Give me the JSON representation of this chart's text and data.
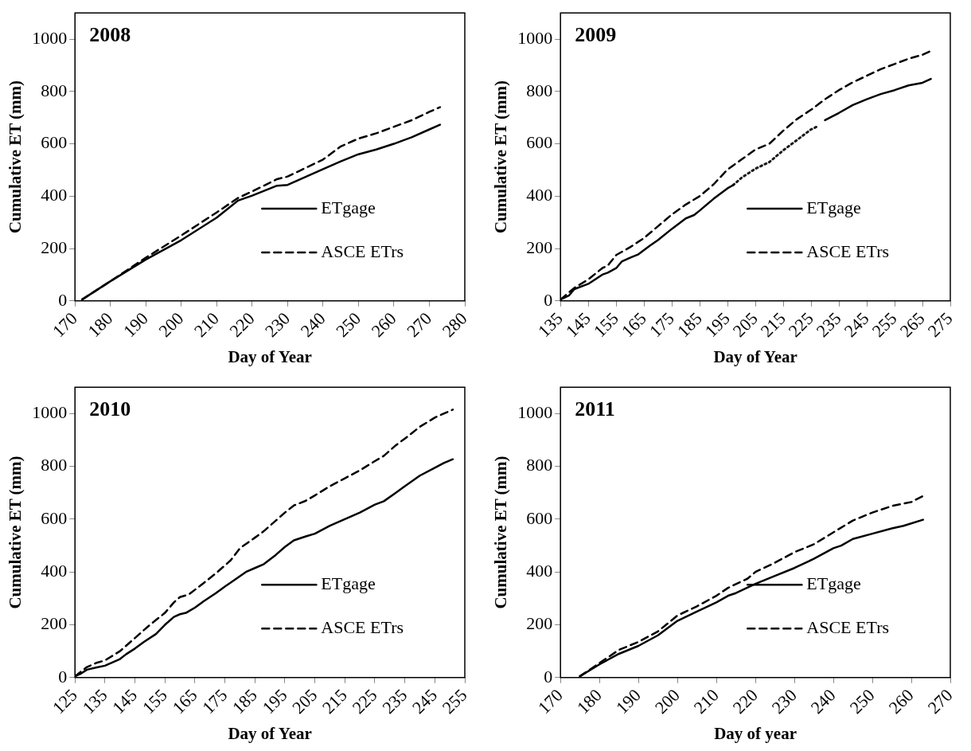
{
  "chart_data": [
    {
      "type": "line",
      "title": "2008",
      "xlabel": "Day of Year",
      "ylabel": "Cumulative ET (mm)",
      "xlim": [
        170,
        280
      ],
      "xticks": [
        170,
        180,
        190,
        200,
        210,
        220,
        230,
        240,
        250,
        260,
        270,
        280
      ],
      "ylim": [
        0,
        1100
      ],
      "yticks": [
        0,
        200,
        400,
        600,
        800,
        1000
      ],
      "grid": false,
      "legend": "right",
      "marker": "none",
      "series": [
        {
          "name": "ETgage",
          "color": "#000000",
          "line_style": "solid",
          "x": [
            172,
            180,
            190,
            200,
            210,
            216,
            220,
            227,
            230,
            240,
            245,
            250,
            255,
            260,
            265,
            270,
            273
          ],
          "values": [
            5,
            75,
            158,
            232,
            318,
            383,
            402,
            440,
            443,
            503,
            533,
            560,
            578,
            600,
            625,
            655,
            673
          ]
        },
        {
          "name": "ASCE ETrs",
          "color": "#000000",
          "line_style": "dashed",
          "x": [
            172,
            180,
            190,
            200,
            210,
            216,
            220,
            227,
            230,
            240,
            245,
            250,
            255,
            260,
            265,
            270,
            273
          ],
          "values": [
            5,
            75,
            165,
            250,
            338,
            393,
            418,
            465,
            475,
            540,
            590,
            620,
            640,
            665,
            690,
            722,
            740
          ]
        }
      ]
    },
    {
      "type": "line",
      "title": "2009",
      "xlabel": "Day of Year",
      "ylabel": "Cumulative ET (mm)",
      "xlim": [
        135,
        275
      ],
      "xticks": [
        135,
        145,
        155,
        165,
        175,
        185,
        195,
        205,
        215,
        225,
        235,
        245,
        255,
        265,
        275
      ],
      "ylim": [
        0,
        1100
      ],
      "yticks": [
        0,
        200,
        400,
        600,
        800,
        1000
      ],
      "grid": false,
      "legend": "right",
      "marker": "none",
      "series": [
        {
          "name": "ETgage",
          "color": "#000000",
          "line_style": "solid",
          "x": [
            135,
            138,
            140,
            145,
            150,
            152,
            155,
            157,
            160,
            163,
            167,
            170,
            175,
            180,
            183,
            185,
            190,
            195,
            197,
            227,
            230,
            235,
            240,
            245,
            250,
            255,
            260,
            265,
            268
          ],
          "values": [
            5,
            20,
            45,
            65,
            100,
            108,
            125,
            150,
            165,
            178,
            210,
            232,
            275,
            315,
            328,
            345,
            390,
            430,
            442,
            null,
            690,
            718,
            748,
            770,
            790,
            805,
            823,
            833,
            848
          ]
        },
        {
          "name": "ASCE ETrs",
          "color": "#000000",
          "line_style": "dashed",
          "x": [
            135,
            140,
            145,
            150,
            152,
            155,
            160,
            165,
            170,
            175,
            180,
            185,
            190,
            195,
            200,
            205,
            210,
            215,
            220,
            225,
            230,
            235,
            240,
            245,
            250,
            255,
            260,
            265,
            268
          ],
          "values": [
            5,
            50,
            82,
            125,
            135,
            175,
            205,
            240,
            285,
            330,
            368,
            400,
            445,
            502,
            540,
            578,
            600,
            650,
            695,
            730,
            770,
            805,
            835,
            860,
            885,
            905,
            925,
            940,
            955
          ]
        },
        {
          "color": "#1a1a1a",
          "line_style": "dotted",
          "x": [
            197,
            200,
            205,
            210,
            215,
            220,
            225,
            227
          ],
          "values": [
            442,
            470,
            505,
            530,
            575,
            615,
            655,
            665
          ]
        }
      ]
    },
    {
      "type": "line",
      "title": "2010",
      "xlabel": "Day of Year",
      "ylabel": "Cumulative ET (mm)",
      "xlim": [
        125,
        255
      ],
      "xticks": [
        125,
        135,
        145,
        155,
        165,
        175,
        185,
        195,
        205,
        215,
        225,
        235,
        245,
        255
      ],
      "ylim": [
        0,
        1100
      ],
      "yticks": [
        0,
        200,
        400,
        600,
        800,
        1000
      ],
      "grid": false,
      "legend": "right",
      "marker": "none",
      "series": [
        {
          "name": "ETgage",
          "color": "#000000",
          "line_style": "solid",
          "x": [
            125,
            127,
            129,
            132,
            135,
            140,
            142,
            145,
            148,
            152,
            155,
            158,
            160,
            162,
            165,
            168,
            172,
            175,
            178,
            182,
            185,
            188,
            192,
            195,
            198,
            202,
            205,
            210,
            215,
            220,
            225,
            228,
            232,
            235,
            240,
            245,
            248,
            251
          ],
          "values": [
            5,
            15,
            30,
            38,
            45,
            70,
            88,
            110,
            135,
            165,
            200,
            230,
            240,
            245,
            265,
            290,
            320,
            345,
            368,
            400,
            415,
            430,
            465,
            495,
            520,
            535,
            545,
            575,
            600,
            625,
            655,
            668,
            700,
            725,
            765,
            795,
            813,
            827
          ]
        },
        {
          "name": "ASCE ETrs",
          "color": "#000000",
          "line_style": "dashed",
          "x": [
            125,
            129,
            132,
            135,
            140,
            145,
            150,
            155,
            158,
            160,
            163,
            167,
            172,
            177,
            180,
            185,
            188,
            192,
            195,
            198,
            202,
            205,
            210,
            215,
            220,
            225,
            228,
            232,
            235,
            240,
            245,
            251
          ],
          "values": [
            5,
            40,
            55,
            65,
            100,
            150,
            200,
            245,
            285,
            305,
            315,
            350,
            395,
            445,
            490,
            530,
            555,
            595,
            625,
            652,
            670,
            690,
            725,
            755,
            785,
            820,
            840,
            880,
            905,
            950,
            985,
            1015
          ]
        }
      ]
    },
    {
      "type": "line",
      "title": "2011",
      "xlabel": "Day of year",
      "ylabel": "Cumulative ET (mm)",
      "xlim": [
        170,
        270
      ],
      "xticks": [
        170,
        180,
        190,
        200,
        210,
        220,
        230,
        240,
        250,
        260,
        270
      ],
      "ylim": [
        0,
        1100
      ],
      "yticks": [
        0,
        200,
        400,
        600,
        800,
        1000
      ],
      "grid": false,
      "legend": "right",
      "marker": "none",
      "series": [
        {
          "name": "ETgage",
          "color": "#000000",
          "line_style": "solid",
          "x": [
            175,
            180,
            185,
            190,
            195,
            200,
            205,
            210,
            213,
            215,
            220,
            225,
            230,
            235,
            240,
            242,
            245,
            250,
            255,
            258,
            263
          ],
          "values": [
            5,
            50,
            90,
            120,
            160,
            215,
            250,
            285,
            310,
            320,
            355,
            385,
            415,
            450,
            490,
            500,
            525,
            545,
            565,
            575,
            598
          ]
        },
        {
          "name": "ASCE ETrs",
          "color": "#000000",
          "line_style": "dashed",
          "x": [
            175,
            180,
            185,
            190,
            195,
            200,
            205,
            210,
            213,
            218,
            220,
            225,
            230,
            235,
            240,
            245,
            250,
            255,
            260,
            263
          ],
          "values": [
            5,
            55,
            105,
            135,
            175,
            235,
            270,
            310,
            340,
            375,
            400,
            435,
            475,
            505,
            550,
            595,
            625,
            650,
            665,
            688
          ]
        }
      ]
    }
  ]
}
